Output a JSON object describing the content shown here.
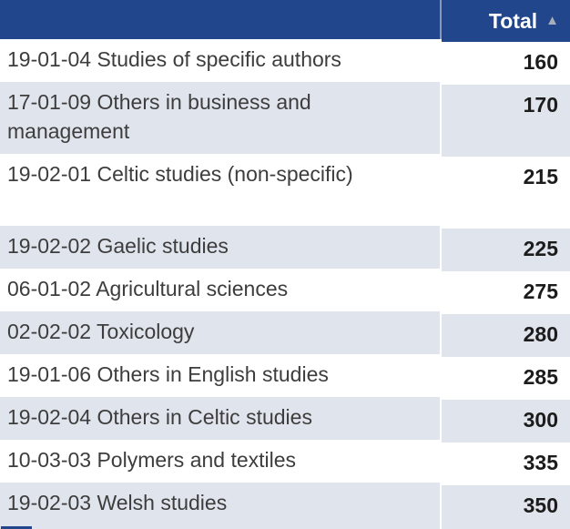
{
  "table": {
    "header": {
      "total_label": "Total",
      "sort_icon": "▲",
      "sort_direction": "ascending"
    },
    "rows": [
      {
        "subject": "19-01-04 Studies of specific authors",
        "total": "160"
      },
      {
        "subject": "17-01-09 Others in business and management",
        "total": "170"
      },
      {
        "subject": "19-02-01 Celtic studies (non-specific)",
        "total": "215"
      },
      {
        "subject": "19-02-02 Gaelic studies",
        "total": "225"
      },
      {
        "subject": "06-01-02 Agricultural sciences",
        "total": "275"
      },
      {
        "subject": "02-02-02 Toxicology",
        "total": "280"
      },
      {
        "subject": "19-01-06 Others in English studies",
        "total": "285"
      },
      {
        "subject": "19-02-04 Others in Celtic studies",
        "total": "300"
      },
      {
        "subject": "10-03-03 Polymers and textiles",
        "total": "335"
      },
      {
        "subject": "19-02-03 Welsh studies",
        "total": "350"
      }
    ],
    "colors": {
      "header_bg": "#21468B",
      "header_text": "#FFFFFF",
      "row_bg": "#FFFFFF",
      "row_alt_bg": "#E0E4ED",
      "subject_text": "#3D3D3D",
      "total_text": "#1C1C1C",
      "sort_icon": "#A9AFB9",
      "divider": "#8A97BE"
    }
  }
}
